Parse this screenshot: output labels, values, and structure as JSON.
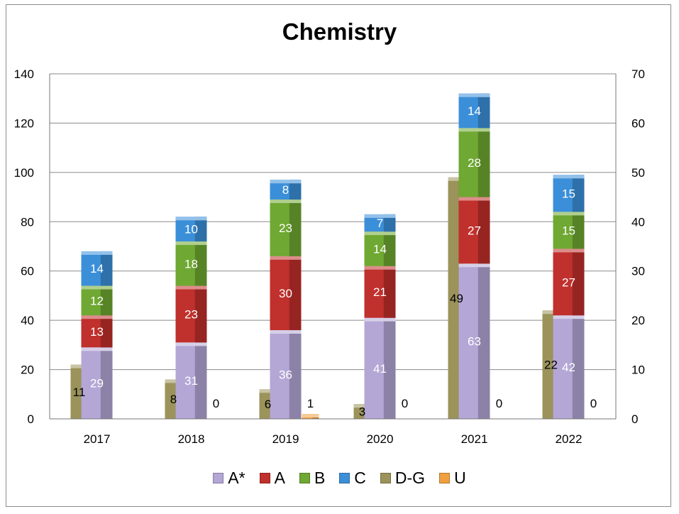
{
  "chart_data": {
    "type": "bar",
    "title": "Chemistry",
    "categories": [
      "2017",
      "2018",
      "2019",
      "2020",
      "2021",
      "2022"
    ],
    "stacked_left_axis": {
      "ylim": [
        0,
        140
      ],
      "ticks": [
        "0",
        "20",
        "40",
        "60",
        "80",
        "100",
        "120",
        "140"
      ],
      "series": [
        {
          "name": "A*",
          "color": "#b4a7d6",
          "values": [
            29,
            31,
            36,
            41,
            63,
            42
          ]
        },
        {
          "name": "A",
          "color": "#c0302c",
          "values": [
            13,
            23,
            30,
            21,
            27,
            27
          ]
        },
        {
          "name": "B",
          "color": "#6fa832",
          "values": [
            12,
            18,
            23,
            14,
            28,
            15
          ]
        },
        {
          "name": "C",
          "color": "#3b8fd9",
          "values": [
            14,
            10,
            8,
            7,
            14,
            15
          ]
        }
      ]
    },
    "secondary_axis": {
      "ylim": [
        0,
        70
      ],
      "ticks": [
        "0",
        "10",
        "20",
        "30",
        "40",
        "50",
        "60",
        "70"
      ],
      "series": [
        {
          "name": "D-G",
          "color": "#9b935a",
          "values": [
            11,
            8,
            6,
            3,
            49,
            22
          ]
        },
        {
          "name": "U",
          "color": "#f0a040",
          "values": [
            null,
            0,
            1,
            0,
            0,
            0
          ]
        }
      ]
    },
    "legend": {
      "position": "bottom",
      "entries": [
        "A*",
        "A",
        "B",
        "C",
        "D-G",
        "U"
      ]
    },
    "grid": true
  }
}
